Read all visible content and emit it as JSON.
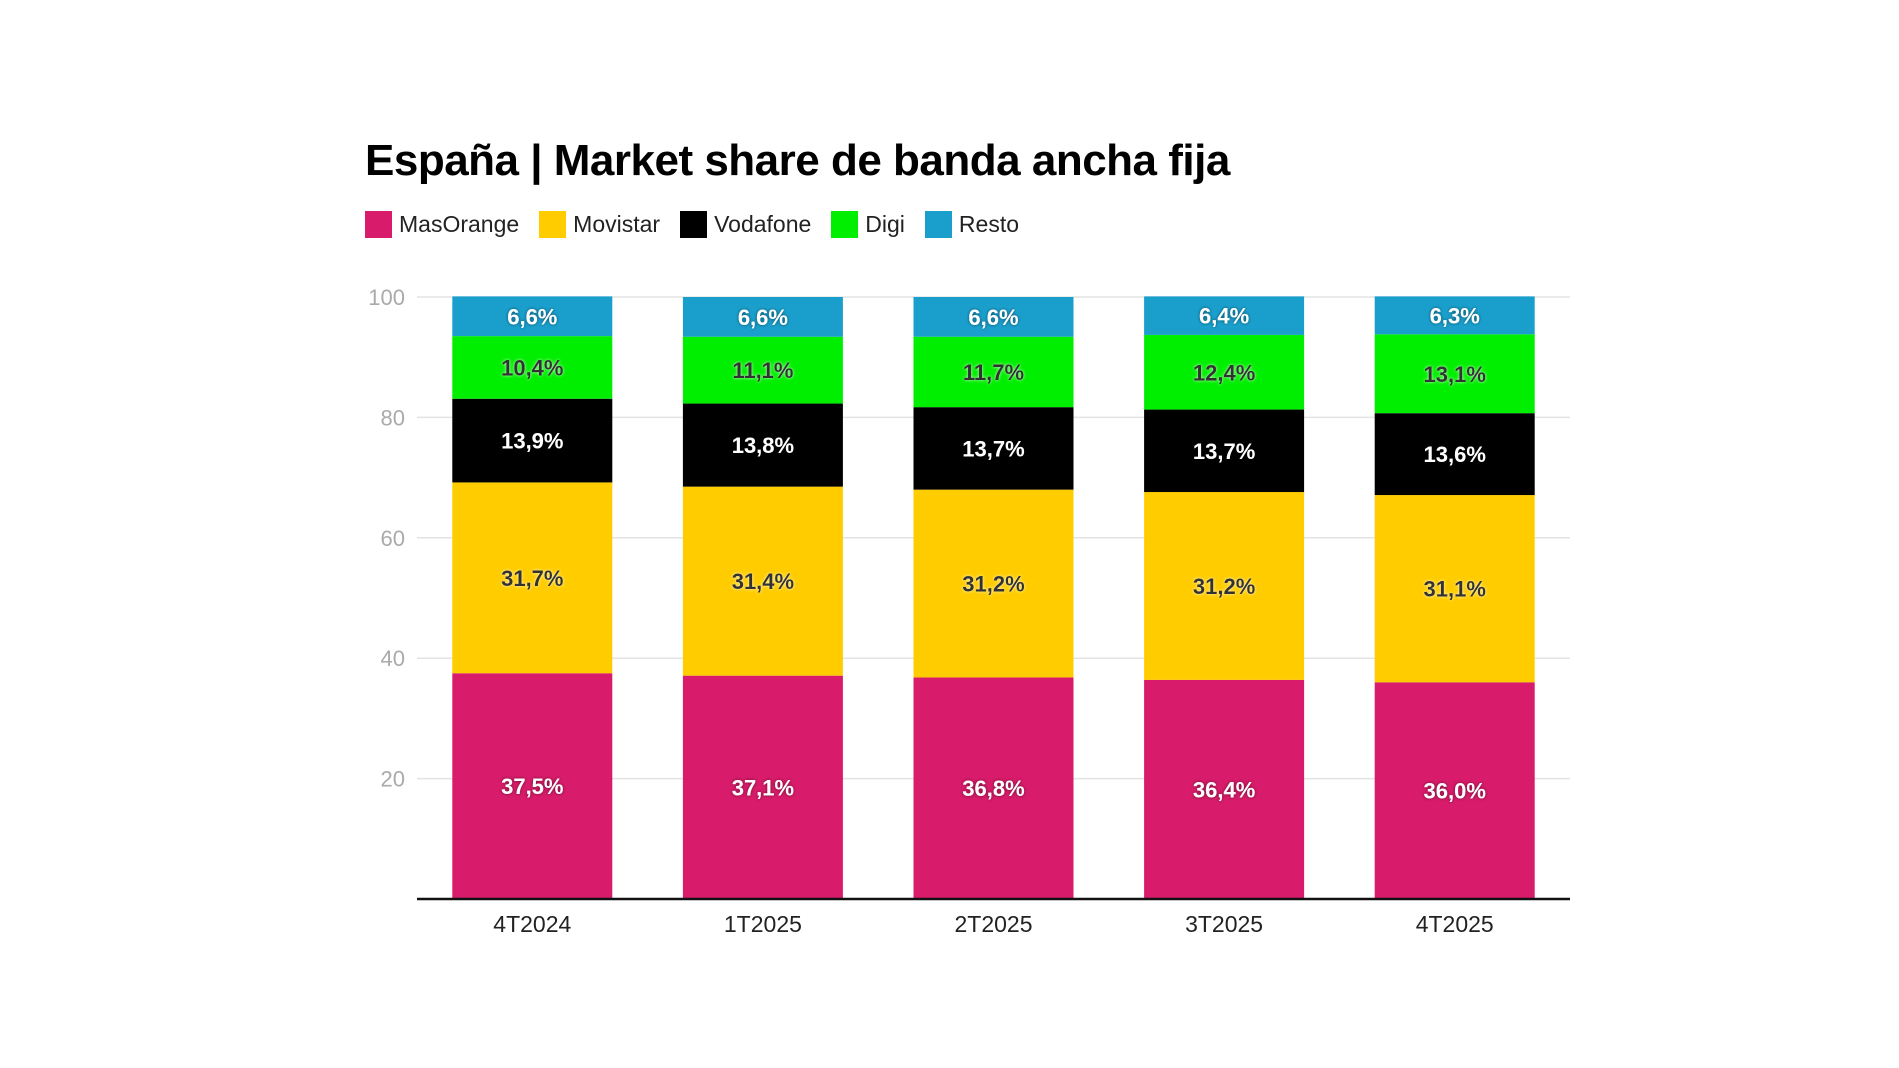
{
  "chart_data": {
    "type": "bar",
    "stacked": true,
    "title": "España | Market share de banda ancha fija",
    "categories": [
      "4T2024",
      "1T2025",
      "2T2025",
      "3T2025",
      "4T2025"
    ],
    "series": [
      {
        "name": "MasOrange",
        "color": "#D81B6A",
        "label_color": "#ffffff",
        "values": [
          37.5,
          37.1,
          36.8,
          36.4,
          36.0
        ],
        "labels": [
          "37,5%",
          "37,1%",
          "36,8%",
          "36,4%",
          "36,0%"
        ]
      },
      {
        "name": "Movistar",
        "color": "#FFCC00",
        "label_color": "#333333",
        "values": [
          31.7,
          31.4,
          31.2,
          31.2,
          31.1
        ],
        "labels": [
          "31,7%",
          "31,4%",
          "31,2%",
          "31,2%",
          "31,1%"
        ]
      },
      {
        "name": "Vodafone",
        "color": "#000000",
        "label_color": "#ffffff",
        "values": [
          13.9,
          13.8,
          13.7,
          13.7,
          13.6
        ],
        "labels": [
          "13,9%",
          "13,8%",
          "13,7%",
          "13,7%",
          "13,6%"
        ]
      },
      {
        "name": "Digi",
        "color": "#00EE00",
        "label_color": "#333333",
        "values": [
          10.4,
          11.1,
          11.7,
          12.4,
          13.1
        ],
        "labels": [
          "10,4%",
          "11,1%",
          "11,7%",
          "12,4%",
          "13,1%"
        ]
      },
      {
        "name": "Resto",
        "color": "#1A9FCC",
        "label_color": "#ffffff",
        "values": [
          6.6,
          6.6,
          6.6,
          6.4,
          6.3
        ],
        "labels": [
          "6,6%",
          "6,6%",
          "6,6%",
          "6,4%",
          "6,3%"
        ]
      }
    ],
    "ylim": [
      0,
      100
    ],
    "yticks": [
      20,
      40,
      60,
      80,
      100
    ],
    "grid": true,
    "legend_position": "top-left"
  }
}
